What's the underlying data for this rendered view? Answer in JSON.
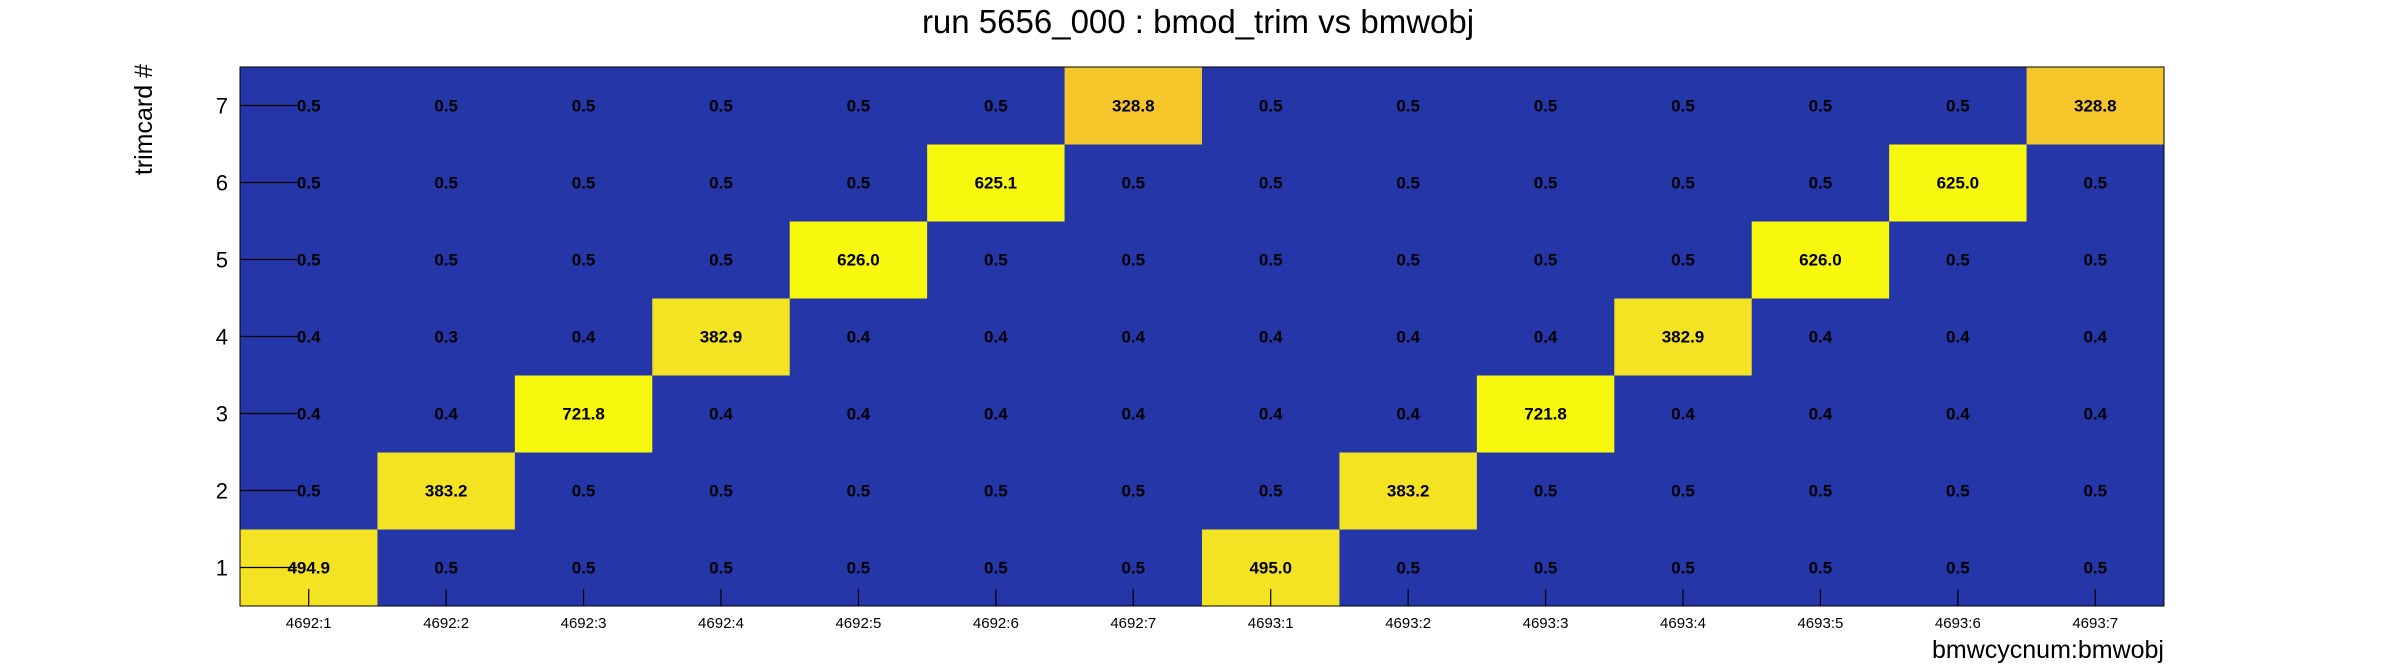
{
  "chart_data": {
    "type": "heatmap",
    "title": "run 5656_000 : bmod_trim vs bmwobj",
    "xlabel": "bmwcycnum:bmwobj",
    "ylabel": "trimcard #",
    "x_categories": [
      "4692:1",
      "4692:2",
      "4692:3",
      "4692:4",
      "4692:5",
      "4692:6",
      "4692:7",
      "4693:1",
      "4693:2",
      "4693:3",
      "4693:4",
      "4693:5",
      "4693:6",
      "4693:7"
    ],
    "y_categories": [
      "1",
      "2",
      "3",
      "4",
      "5",
      "6",
      "7"
    ],
    "values": [
      [
        "494.9",
        "0.5",
        "0.5",
        "0.5",
        "0.5",
        "0.5",
        "0.5",
        "495.0",
        "0.5",
        "0.5",
        "0.5",
        "0.5",
        "0.5",
        "0.5"
      ],
      [
        "0.5",
        "383.2",
        "0.5",
        "0.5",
        "0.5",
        "0.5",
        "0.5",
        "0.5",
        "383.2",
        "0.5",
        "0.5",
        "0.5",
        "0.5",
        "0.5"
      ],
      [
        "0.4",
        "0.4",
        "721.8",
        "0.4",
        "0.4",
        "0.4",
        "0.4",
        "0.4",
        "0.4",
        "721.8",
        "0.4",
        "0.4",
        "0.4",
        "0.4"
      ],
      [
        "0.4",
        "0.3",
        "0.4",
        "382.9",
        "0.4",
        "0.4",
        "0.4",
        "0.4",
        "0.4",
        "0.4",
        "382.9",
        "0.4",
        "0.4",
        "0.4"
      ],
      [
        "0.5",
        "0.5",
        "0.5",
        "0.5",
        "626.0",
        "0.5",
        "0.5",
        "0.5",
        "0.5",
        "0.5",
        "0.5",
        "626.0",
        "0.5",
        "0.5"
      ],
      [
        "0.5",
        "0.5",
        "0.5",
        "0.5",
        "0.5",
        "625.1",
        "0.5",
        "0.5",
        "0.5",
        "0.5",
        "0.5",
        "0.5",
        "625.0",
        "0.5"
      ],
      [
        "0.5",
        "0.5",
        "0.5",
        "0.5",
        "0.5",
        "0.5",
        "328.8",
        "0.5",
        "0.5",
        "0.5",
        "0.5",
        "0.5",
        "0.5",
        "328.8"
      ]
    ],
    "color_low": "#2536a8",
    "color_high": "#f8f80e",
    "color_mid": "#f4c62a",
    "grid": false,
    "legend": "none"
  }
}
